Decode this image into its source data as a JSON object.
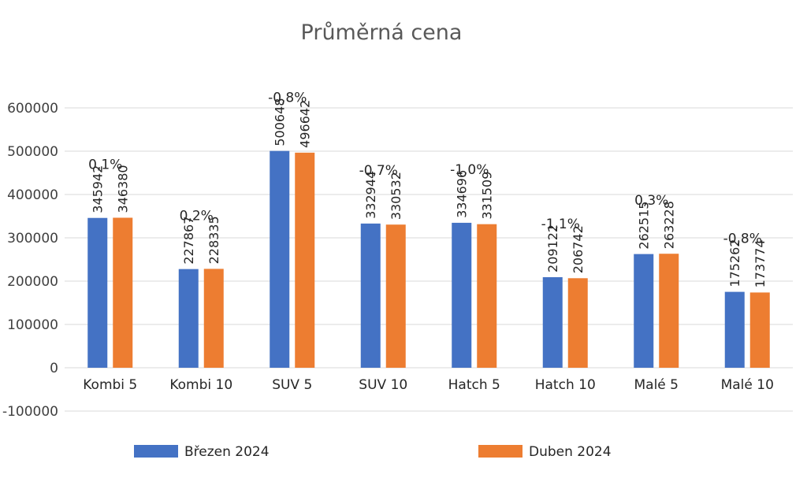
{
  "chart_data": {
    "type": "bar",
    "title": "Průměrná cena",
    "categories": [
      "Kombi 5",
      "Kombi 10",
      "SUV 5",
      "SUV 10",
      "Hatch 5",
      "Hatch 10",
      "Malé 5",
      "Malé 10"
    ],
    "series": [
      {
        "name": "Březen 2024",
        "color": "#4472c4",
        "values": [
          345942,
          227867,
          500648,
          332944,
          334696,
          209122,
          262515,
          175262
        ]
      },
      {
        "name": "Duben 2024",
        "color": "#ed7d31",
        "values": [
          346380,
          228335,
          496642,
          330532,
          331509,
          206742,
          263228,
          173774
        ]
      }
    ],
    "change_labels": [
      "0,1%",
      "0,2%",
      "-0,8%",
      "-0,7%",
      "-1,0%",
      "-1,1%",
      "0,3%",
      "-0,8%"
    ],
    "ylim": [
      -100000,
      600000
    ],
    "yticks": [
      -100000,
      0,
      100000,
      200000,
      300000,
      400000,
      500000,
      600000
    ],
    "xlabel": "",
    "ylabel": "",
    "grid": true,
    "legend": "bottom"
  }
}
